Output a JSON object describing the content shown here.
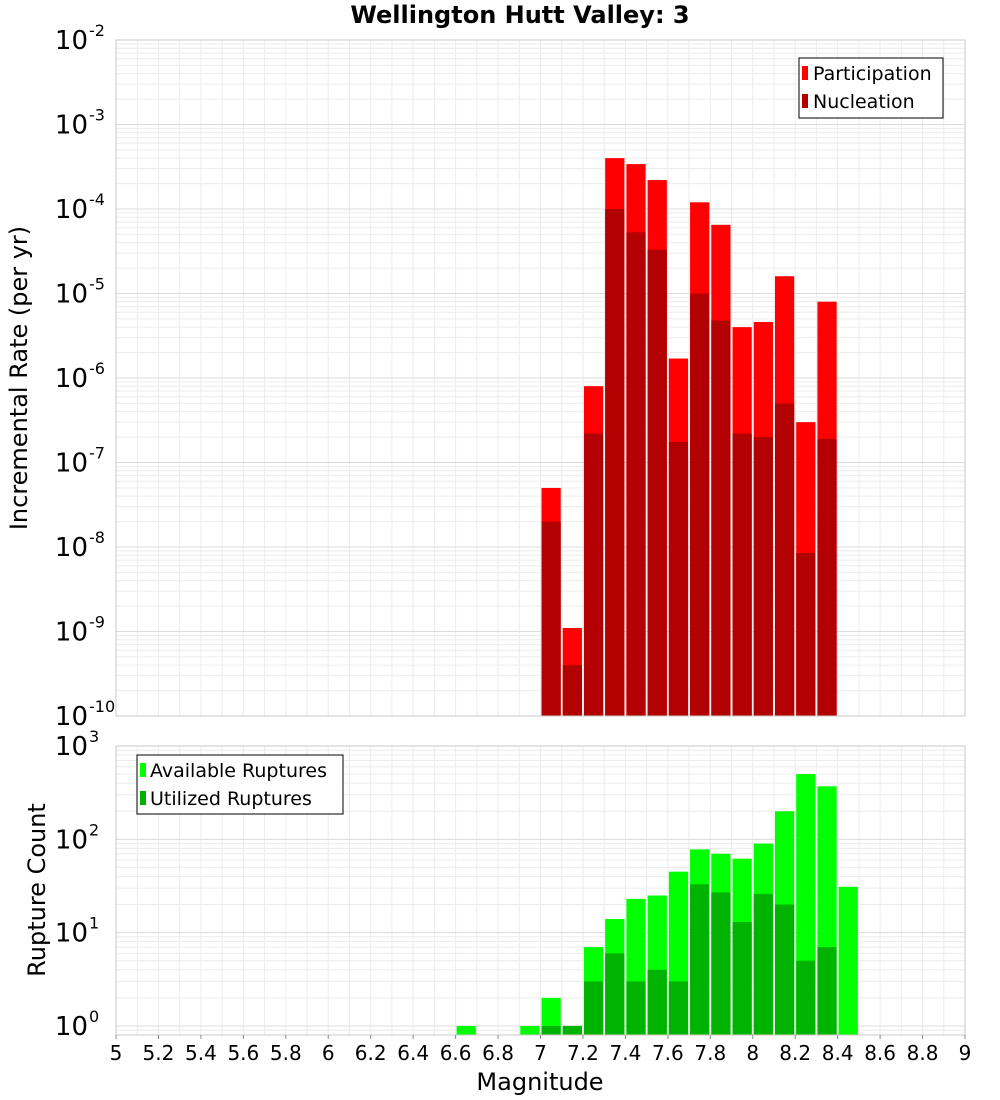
{
  "chart_data": [
    {
      "type": "bar",
      "title": "Wellington Hutt Valley: 3",
      "xlabel": "Magnitude",
      "ylabel": "Incremental Rate (per yr)",
      "yscale": "log",
      "xlim": [
        5,
        9
      ],
      "ylim": [
        1e-10,
        0.01
      ],
      "bin_width": 0.1,
      "grid": true,
      "legend_position": "top-right",
      "yticks": [
        {
          "base": "10",
          "exp": "-10"
        },
        {
          "base": "10",
          "exp": "-9"
        },
        {
          "base": "10",
          "exp": "-8"
        },
        {
          "base": "10",
          "exp": "-7"
        },
        {
          "base": "10",
          "exp": "-6"
        },
        {
          "base": "10",
          "exp": "-5"
        },
        {
          "base": "10",
          "exp": "-4"
        },
        {
          "base": "10",
          "exp": "-3"
        },
        {
          "base": "10",
          "exp": "-2"
        }
      ],
      "series": [
        {
          "name": "Participation",
          "color": "#ff0000",
          "x": [
            7.05,
            7.15,
            7.25,
            7.35,
            7.45,
            7.55,
            7.65,
            7.75,
            7.85,
            7.95,
            8.05,
            8.15,
            8.25,
            8.35
          ],
          "values": [
            5e-08,
            1.1e-09,
            8e-07,
            0.0004,
            0.00034,
            0.00022,
            1.7e-06,
            0.00012,
            6.5e-05,
            4e-06,
            4.6e-06,
            1.6e-05,
            3e-07,
            8e-06
          ]
        },
        {
          "name": "Nucleation",
          "color": "#b30000",
          "x": [
            7.05,
            7.15,
            7.25,
            7.35,
            7.45,
            7.55,
            7.65,
            7.75,
            7.85,
            7.95,
            8.05,
            8.15,
            8.25,
            8.35
          ],
          "values": [
            2e-08,
            4e-10,
            2.2e-07,
            0.0001,
            5.3e-05,
            3.3e-05,
            1.75e-07,
            1e-05,
            4.8e-06,
            2.2e-07,
            2e-07,
            5e-07,
            8.5e-09,
            1.9e-07
          ]
        }
      ]
    },
    {
      "type": "bar",
      "xlabel": "Magnitude",
      "ylabel": "Rupture Count",
      "yscale": "log",
      "xlim": [
        5,
        9
      ],
      "ylim": [
        0.8,
        1000
      ],
      "bin_width": 0.1,
      "grid": true,
      "legend_position": "top-left",
      "yticks": [
        {
          "base": "10",
          "exp": "0"
        },
        {
          "base": "10",
          "exp": "1"
        },
        {
          "base": "10",
          "exp": "2"
        },
        {
          "base": "10",
          "exp": "3"
        }
      ],
      "xticks": [
        "5",
        "5.2",
        "5.4",
        "5.6",
        "5.8",
        "6",
        "6.2",
        "6.4",
        "6.6",
        "6.8",
        "7",
        "7.2",
        "7.4",
        "7.6",
        "7.8",
        "8",
        "8.2",
        "8.4",
        "8.6",
        "8.8",
        "9"
      ],
      "series": [
        {
          "name": "Available Ruptures",
          "color": "#00ff00",
          "x": [
            6.65,
            6.95,
            7.05,
            7.15,
            7.25,
            7.35,
            7.45,
            7.55,
            7.65,
            7.75,
            7.85,
            7.95,
            8.05,
            8.15,
            8.25,
            8.35,
            8.45
          ],
          "values": [
            1,
            1,
            2,
            1,
            7,
            14,
            23,
            25,
            45,
            78,
            70,
            62,
            90,
            200,
            500,
            370,
            31
          ]
        },
        {
          "name": "Utilized Ruptures",
          "color": "#00b300",
          "x": [
            7.05,
            7.15,
            7.25,
            7.35,
            7.45,
            7.55,
            7.65,
            7.75,
            7.85,
            7.95,
            8.05,
            8.15,
            8.25,
            8.35
          ],
          "values": [
            1,
            1,
            3,
            6,
            3,
            4,
            3,
            33,
            27,
            13,
            26,
            20,
            5,
            7
          ]
        }
      ]
    }
  ]
}
